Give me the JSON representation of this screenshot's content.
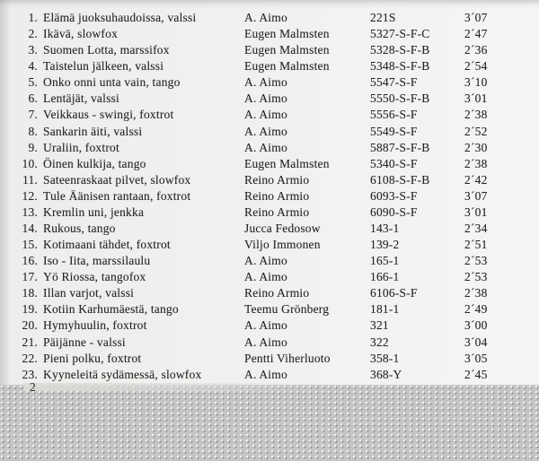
{
  "document": {
    "kind": "scanned-track-list"
  },
  "tracks": [
    {
      "no": "1.",
      "title": "Elämä juoksuhaudoissa, valssi",
      "artist": "A. Aimo",
      "catalog": "221S",
      "duration": "3´07"
    },
    {
      "no": "2.",
      "title": "Ikävä, slowfox",
      "artist": "Eugen Malmsten",
      "catalog": "5327-S-F-C",
      "duration": "2´47"
    },
    {
      "no": "3.",
      "title": "Suomen Lotta, marssifox",
      "artist": "Eugen Malmsten",
      "catalog": "5328-S-F-B",
      "duration": "2´36"
    },
    {
      "no": "4.",
      "title": "Taistelun jälkeen, valssi",
      "artist": "Eugen Malmsten",
      "catalog": "5348-S-F-B",
      "duration": "2´54"
    },
    {
      "no": "5.",
      "title": "Onko onni unta vain, tango",
      "artist": "A. Aimo",
      "catalog": "5547-S-F",
      "duration": "3´10"
    },
    {
      "no": "6.",
      "title": "Lentäjät, valssi",
      "artist": "A. Aimo",
      "catalog": "5550-S-F-B",
      "duration": "3´01"
    },
    {
      "no": "7.",
      "title": "Veikkaus - swingi, foxtrot",
      "artist": "A. Aimo",
      "catalog": "5556-S-F",
      "duration": "2´38"
    },
    {
      "no": "8.",
      "title": "Sankarin äiti, valssi",
      "artist": "A. Aimo",
      "catalog": "5549-S-F",
      "duration": "2´52"
    },
    {
      "no": "9.",
      "title": "Uraliin, foxtrot",
      "artist": "A. Aimo",
      "catalog": "5887-S-F-B",
      "duration": "2´30"
    },
    {
      "no": "10.",
      "title": "Öinen kulkija, tango",
      "artist": "Eugen Malmsten",
      "catalog": "5340-S-F",
      "duration": "2´38"
    },
    {
      "no": "11.",
      "title": "Sateenraskaat pilvet, slowfox",
      "artist": "Reino Armio",
      "catalog": "6108-S-F-B",
      "duration": "2´42"
    },
    {
      "no": "12.",
      "title": "Tule Äänisen rantaan, foxtrot",
      "artist": "Reino Armio",
      "catalog": "6093-S-F",
      "duration": "3´07"
    },
    {
      "no": "13.",
      "title": "Kremlin uni, jenkka",
      "artist": "Reino Armio",
      "catalog": "6090-S-F",
      "duration": "3´01"
    },
    {
      "no": "14.",
      "title": "Rukous, tango",
      "artist": "Jucca Fedosow",
      "catalog": "143-1",
      "duration": "2´34"
    },
    {
      "no": "15.",
      "title": "Kotimaani tähdet, foxtrot",
      "artist": "Viljo Immonen",
      "catalog": "139-2",
      "duration": "2´51"
    },
    {
      "no": "16.",
      "title": "Iso - Iita, marssilaulu",
      "artist": "A. Aimo",
      "catalog": "165-1",
      "duration": "2´53"
    },
    {
      "no": "17.",
      "title": "Yö Riossa, tangofox",
      "artist": "A. Aimo",
      "catalog": "166-1",
      "duration": "2´53"
    },
    {
      "no": "18.",
      "title": "Illan varjot, valssi",
      "artist": "Reino Armio",
      "catalog": "6106-S-F",
      "duration": "2´38"
    },
    {
      "no": "19.",
      "title": "Kotiin Karhumäestä, tango",
      "artist": "Teemu Grönberg",
      "catalog": "181-1",
      "duration": "2´49"
    },
    {
      "no": "20.",
      "title": "Hymyhuulin, foxtrot",
      "artist": "A. Aimo",
      "catalog": "321",
      "duration": "3´00"
    },
    {
      "no": "21.",
      "title": "Päijänne - valssi",
      "artist": "A. Aimo",
      "catalog": "322",
      "duration": "3´04"
    },
    {
      "no": "22.",
      "title": "Pieni polku, foxtrot",
      "artist": "Pentti Viherluoto",
      "catalog": "358-1",
      "duration": "3´05"
    },
    {
      "no": "23.",
      "title": "Kyyneleitä sydämessä, slowfox",
      "artist": "A. Aimo",
      "catalog": "368-Y",
      "duration": "2´45"
    }
  ],
  "partial_next_row": "2",
  "colors": {
    "paper": "#f2f1ef",
    "text": "#262626",
    "texture_base": "#c5c5c5"
  }
}
